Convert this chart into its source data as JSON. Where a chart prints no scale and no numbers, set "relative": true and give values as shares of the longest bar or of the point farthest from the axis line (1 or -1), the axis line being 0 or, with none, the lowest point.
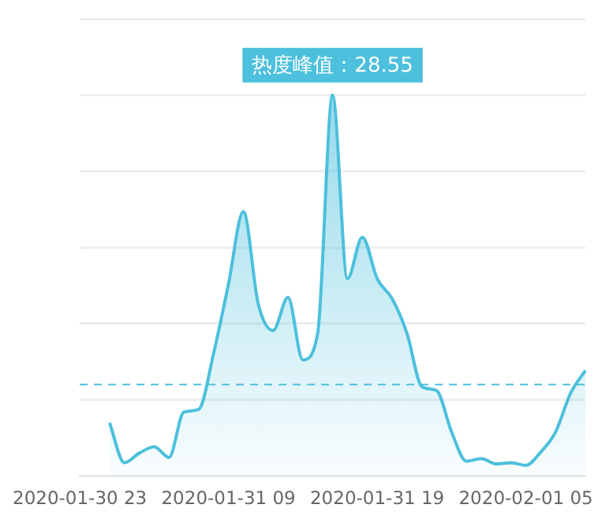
{
  "chart_data": {
    "type": "area",
    "relative": true,
    "categories": [
      "2020-01-30 23",
      null,
      null,
      null,
      null,
      null,
      null,
      null,
      null,
      null,
      "2020-01-31 09",
      null,
      null,
      null,
      null,
      null,
      null,
      null,
      null,
      null,
      "2020-01-31 19",
      null,
      null,
      null,
      null,
      null,
      null,
      null,
      null,
      null,
      "2020-02-01 05",
      null,
      null,
      null,
      null
    ],
    "series": [
      {
        "color": "#4cc0dc",
        "values": [
          null,
          null,
          0.14,
          0.035,
          0.06,
          0.077,
          0.049,
          0.168,
          0.175,
          0.322,
          0.504,
          0.694,
          0.452,
          0.382,
          0.469,
          0.305,
          0.375,
          1,
          0.518,
          0.627,
          0.518,
          0.466,
          0.375,
          0.235,
          0.224,
          0.116,
          0.039,
          0.046,
          0.032,
          0.035,
          0.028,
          0.063,
          0.116,
          0.217,
          0.277
        ]
      }
    ],
    "grid": "y",
    "ref_lines": [
      {
        "axis": "y",
        "value": 0.24,
        "color": "#4cc0dc",
        "line_style": "dashed"
      }
    ],
    "annotations": [
      "热度峰值：28.55"
    ],
    "marker": "none",
    "legend": false
  }
}
